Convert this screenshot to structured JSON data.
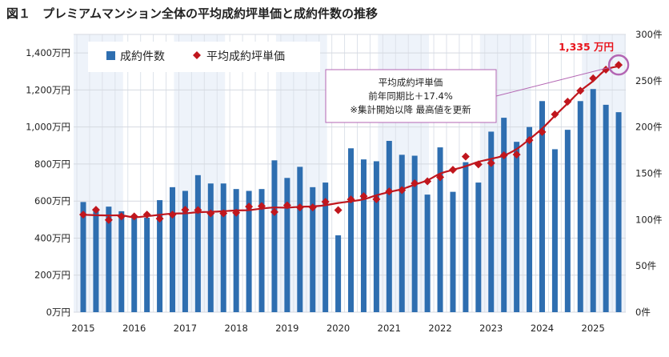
{
  "title": "図１　プレミアムマンション全体の平均成約坪単価と成約件数の推移",
  "chart_data": {
    "type": "bar+line",
    "title": "図１　プレミアムマンション全体の平均成約坪単価と成約件数の推移",
    "x_tick_labels": [
      "2015",
      "2016",
      "2017",
      "2018",
      "2019",
      "2020",
      "2021",
      "2022",
      "2023",
      "2024",
      "2025"
    ],
    "left_axis": {
      "ylim": [
        0,
        1500
      ],
      "tick_labels": [
        "0万円",
        "200万円",
        "400万円",
        "600万円",
        "800万円",
        "1,000万円",
        "1,200万円",
        "1,400万円"
      ]
    },
    "right_axis": {
      "ylim": [
        0,
        300
      ],
      "tick_labels": [
        "0件",
        "50件",
        "100件",
        "150件",
        "200件",
        "250件",
        "300件"
      ]
    },
    "grid": true,
    "legend": {
      "position": "top-left",
      "items": [
        "成約件数",
        "平均成約坪単価"
      ]
    },
    "series": [
      {
        "name": "成約件数",
        "type": "bar",
        "axis": "right",
        "color": "#2e6eb0",
        "values": [
          119,
          110,
          114,
          109,
          104,
          102,
          121,
          135,
          131,
          148,
          139,
          139,
          133,
          131,
          133,
          164,
          145,
          157,
          135,
          140,
          83,
          177,
          165,
          163,
          185,
          170,
          169,
          127,
          178,
          130,
          162,
          140,
          195,
          210,
          184,
          200,
          228,
          176,
          197,
          228,
          241,
          224,
          216
        ]
      },
      {
        "name": "平均成約坪単価",
        "type": "scatter+trend",
        "axis": "left",
        "color": "#c0161d",
        "values": [
          527,
          553,
          498,
          517,
          517,
          527,
          505,
          527,
          553,
          551,
          534,
          534,
          537,
          570,
          573,
          541,
          577,
          566,
          566,
          596,
          551,
          609,
          626,
          610,
          652,
          659,
          696,
          707,
          729,
          769,
          840,
          798,
          805,
          847,
          851,
          929,
          973,
          1068,
          1137,
          1196,
          1263,
          1310,
          1335
        ]
      }
    ],
    "annotations": {
      "peak_label": "1,335 万円",
      "callout_lines": [
        "平均成約坪単価",
        "前年同期比＋17.4%",
        "※集計開始以降  最高値を更新"
      ]
    }
  },
  "colors": {
    "bar": "#2e6eb0",
    "marker": "#c0161d",
    "trend": "#c0161d",
    "highlight": "#b366b3",
    "peak_label": "#e8141c",
    "band": "#eef3fa"
  }
}
